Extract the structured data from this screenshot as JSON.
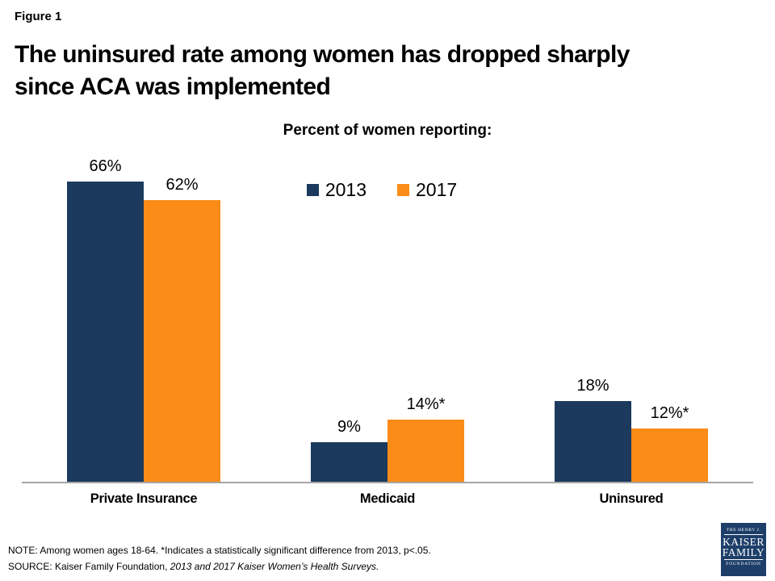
{
  "header": {
    "figure_label": "Figure 1",
    "title": "The uninsured rate among women has dropped sharply since ACA was implemented",
    "title_line1": "The uninsured rate among women has dropped sharply",
    "title_line2": "since ACA was implemented"
  },
  "chart_data": {
    "type": "bar",
    "title": "Percent of women reporting:",
    "categories": [
      "Private Insurance",
      "Medicaid",
      "Uninsured"
    ],
    "series": [
      {
        "name": "2013",
        "color": "#1b3a5e",
        "values": [
          66,
          9,
          18
        ],
        "labels": [
          "66%",
          "9%",
          "18%"
        ]
      },
      {
        "name": "2017",
        "color": "#fb8c17",
        "values": [
          62,
          14,
          12
        ],
        "labels": [
          "62%",
          "14%*",
          "12%*"
        ]
      }
    ],
    "ylim": [
      0,
      70
    ],
    "value_unit": "percent",
    "grid": false,
    "legend_position": "top-center",
    "axis_line_color": "#a6a6a6"
  },
  "notes": {
    "note": "NOTE:  Among  women  ages 18-64. *Indicates a statistically significant difference from 2013, p<.05.",
    "source_prefix": "SOURCE:  Kaiser Family Foundation, ",
    "source_italic": "2013 and 2017 Kaiser Women’s Health Surveys."
  },
  "logo": {
    "top": "THE HENRY J.",
    "name1": "KAISER",
    "name2": "FAMILY",
    "bottom": "FOUNDATION"
  }
}
